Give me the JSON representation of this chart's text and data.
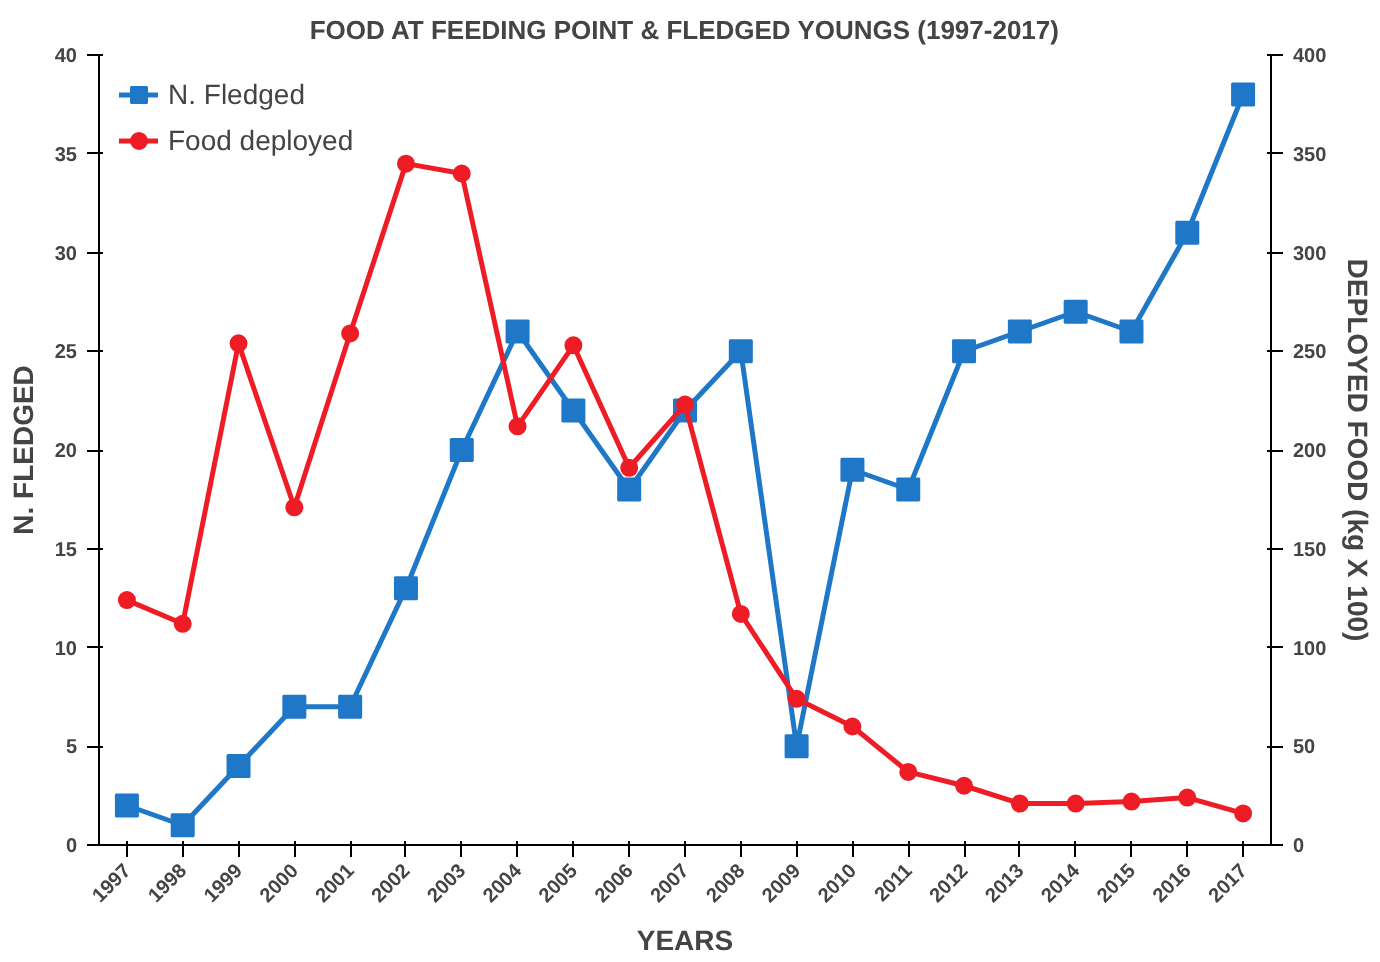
{
  "chart_data": {
    "type": "line",
    "title": "FOOD AT FEEDING POINT & FLEDGED YOUNGS (1997-2017)",
    "xlabel": "YEARS",
    "ylabel": "N. FLEDGED",
    "y2label": "DEPLOYED FOOD (kg X 100)",
    "categories": [
      "1997",
      "1998",
      "1999",
      "2000",
      "2001",
      "2002",
      "2003",
      "2004",
      "2005",
      "2006",
      "2007",
      "2008",
      "2009",
      "2010",
      "2011",
      "2012",
      "2013",
      "2014",
      "2015",
      "2016",
      "2017"
    ],
    "series": [
      {
        "name": "N. Fledged",
        "color": "#1f77c8",
        "marker": "square",
        "values": [
          2,
          1,
          4,
          7,
          7,
          13,
          20,
          26,
          22,
          18,
          22,
          25,
          5,
          19,
          18,
          25,
          26,
          27,
          26,
          31,
          38
        ]
      },
      {
        "name": "Food deployed",
        "color": "#ee1c25",
        "marker": "circle",
        "axis": "y2",
        "values": [
          124,
          112,
          254,
          171,
          259,
          345,
          340,
          212,
          253,
          191,
          223,
          117,
          74,
          60,
          37,
          30,
          21,
          21,
          22,
          24,
          16
        ]
      }
    ],
    "ylim": [
      0,
      40
    ],
    "yticks": [
      0,
      5,
      10,
      15,
      20,
      25,
      30,
      35,
      40
    ],
    "y2lim": [
      0,
      400
    ],
    "y2ticks": [
      0,
      50,
      100,
      150,
      200,
      250,
      300,
      350,
      400
    ],
    "legend": "top left",
    "grid": false
  }
}
